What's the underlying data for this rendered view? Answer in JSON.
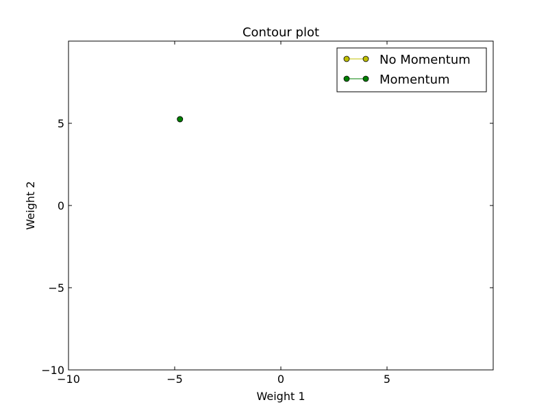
{
  "chart_data": {
    "type": "scatter",
    "title": "Contour plot",
    "xlabel": "Weight 1",
    "ylabel": "Weight 2",
    "xlim": [
      -10,
      10
    ],
    "ylim": [
      -10,
      10
    ],
    "xticks": [
      {
        "value": -10,
        "label": "−10"
      },
      {
        "value": -5,
        "label": "−5"
      },
      {
        "value": 0,
        "label": "0"
      },
      {
        "value": 5,
        "label": "5"
      }
    ],
    "yticks": [
      {
        "value": -10,
        "label": "−10"
      },
      {
        "value": -5,
        "label": "−5"
      },
      {
        "value": 0,
        "label": "0"
      },
      {
        "value": 5,
        "label": "5"
      }
    ],
    "grid": false,
    "legend_position": "top-right",
    "series": [
      {
        "name": "No Momentum",
        "color": "#bfbf00",
        "points": [
          {
            "x": -4.75,
            "y": 5.25
          }
        ]
      },
      {
        "name": "Momentum",
        "color": "#008000",
        "points": [
          {
            "x": -4.75,
            "y": 5.25
          }
        ]
      }
    ]
  }
}
